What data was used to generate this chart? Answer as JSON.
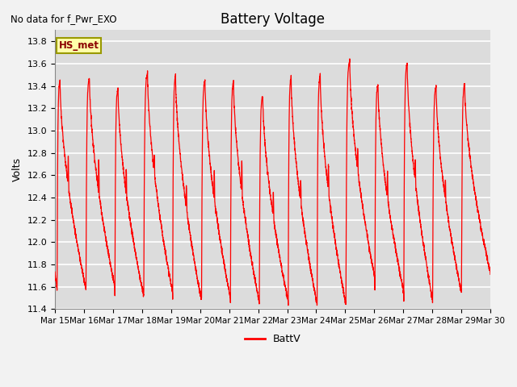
{
  "title": "Battery Voltage",
  "subtitle": "No data for f_Pwr_EXO",
  "ylabel": "Volts",
  "legend_label": "BattV",
  "legend_label2": "HS_met",
  "ylim": [
    11.4,
    13.9
  ],
  "yticks": [
    11.4,
    11.6,
    11.8,
    12.0,
    12.2,
    12.4,
    12.6,
    12.8,
    13.0,
    13.2,
    13.4,
    13.6,
    13.8
  ],
  "xtick_labels": [
    "Mar 15",
    "Mar 16",
    "Mar 17",
    "Mar 18",
    "Mar 19",
    "Mar 20",
    "Mar 21",
    "Mar 22",
    "Mar 23",
    "Mar 24",
    "Mar 25",
    "Mar 26",
    "Mar 27",
    "Mar 28",
    "Mar 29",
    "Mar 30"
  ],
  "line_color": "#FF0000",
  "bg_color": "#DCDCDC",
  "grid_color": "#FFFFFF",
  "hs_met_bg": "#FFFFAA",
  "hs_met_edge": "#999900",
  "fig_bg": "#F2F2F2"
}
